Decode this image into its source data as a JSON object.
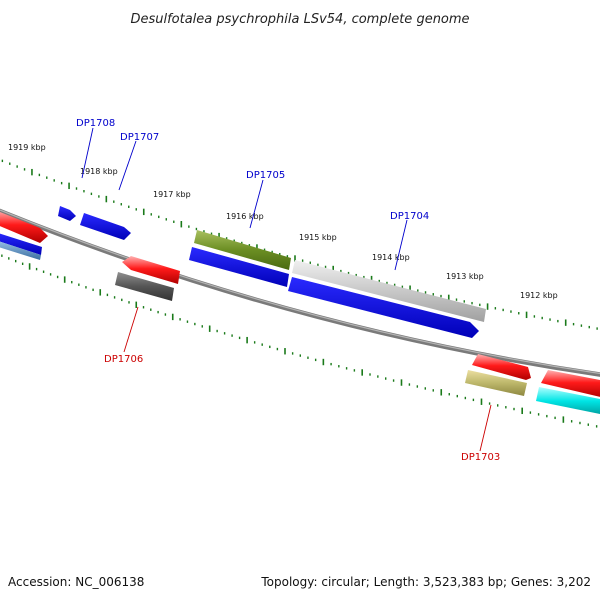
{
  "title": "Desulfotalea psychrophila LSv54, complete genome",
  "footer": {
    "accession": "Accession: NC_006138",
    "summary": "Topology: circular; Length: 3,523,383 bp; Genes: 3,202"
  },
  "scale_labels": [
    "1919 kbp",
    "1918 kbp",
    "1917 kbp",
    "1916 kbp",
    "1915 kbp",
    "1914 kbp",
    "1913 kbp",
    "1912 kbp"
  ],
  "gene_labels": {
    "dp1708": "DP1708",
    "dp1707": "DP1707",
    "dp1706": "DP1706",
    "dp1705": "DP1705",
    "dp1704": "DP1704",
    "dp1703": "DP1703"
  },
  "colors": {
    "backbone": "#808080",
    "tick": "#1a7a1a",
    "label_forward": "#0000cc",
    "label_reverse": "#cc0000",
    "red": "#ee1111",
    "blue": "#1515ee",
    "olive": "#6b8e23",
    "light_gray": "#c8c8c8",
    "dark_gray": "#555555",
    "khaki": "#bdb76b",
    "cyan": "#00e5e5",
    "steel_blue": "#4682b4"
  }
}
